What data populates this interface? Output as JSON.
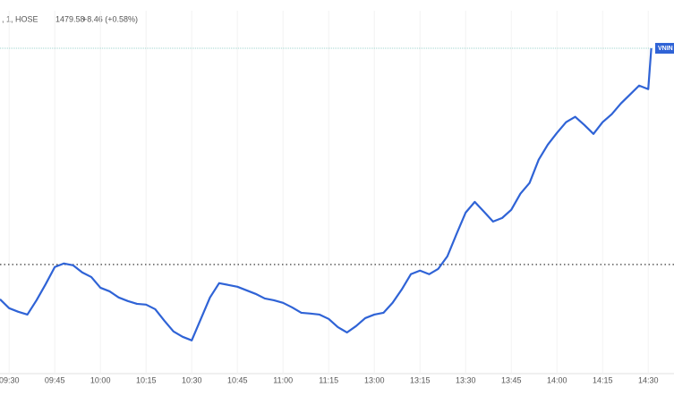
{
  "chart_data": {
    "type": "line",
    "header": {
      "symbol": ", 1, HOSE",
      "last": 1479.58,
      "change": "+8.46 (+0.58%)"
    },
    "last_tag": "VNIN",
    "prev_close": 1471.12,
    "grid": true,
    "xlim": [
      12,
      226.7
    ],
    "ylim": [
      1466.85,
      1481.05
    ],
    "xticks": [
      {
        "value": 15,
        "label": "09:30"
      },
      {
        "value": 30,
        "label": "09:45"
      },
      {
        "value": 45,
        "label": "10:00"
      },
      {
        "value": 60,
        "label": "10:15"
      },
      {
        "value": 75,
        "label": "10:30"
      },
      {
        "value": 90,
        "label": "10:45"
      },
      {
        "value": 105,
        "label": "11:00"
      },
      {
        "value": 120,
        "label": "11:15"
      },
      {
        "value": 135,
        "label": "13:00"
      },
      {
        "value": 150,
        "label": "13:15"
      },
      {
        "value": 165,
        "label": "13:30"
      },
      {
        "value": 180,
        "label": "13:45"
      },
      {
        "value": 195,
        "label": "14:00"
      },
      {
        "value": 210,
        "label": "14:15"
      },
      {
        "value": 225,
        "label": "14:30"
      }
    ],
    "x": [
      12,
      15,
      18,
      21,
      24,
      27,
      30,
      33,
      36,
      39,
      42,
      45,
      48,
      51,
      54,
      57,
      60,
      63,
      66,
      69,
      72,
      75,
      78,
      81,
      84,
      87,
      90,
      93,
      96,
      99,
      102,
      105,
      108,
      111,
      114,
      117,
      120,
      123,
      126,
      129,
      132,
      135,
      138,
      141,
      144,
      147,
      150,
      153,
      156,
      159,
      162,
      165,
      168,
      171,
      174,
      177,
      180,
      183,
      186,
      189,
      192,
      195,
      198,
      201,
      204,
      207,
      210,
      213,
      216,
      219,
      222,
      225,
      226
    ],
    "series": [
      {
        "color": "#2f63d6",
        "values": [
          1469.76,
          1469.41,
          1469.27,
          1469.16,
          1469.72,
          1470.35,
          1471.02,
          1471.16,
          1471.09,
          1470.81,
          1470.63,
          1470.21,
          1470.07,
          1469.83,
          1469.69,
          1469.58,
          1469.55,
          1469.37,
          1468.92,
          1468.5,
          1468.29,
          1468.15,
          1468.99,
          1469.83,
          1470.39,
          1470.32,
          1470.25,
          1470.11,
          1469.97,
          1469.79,
          1469.72,
          1469.62,
          1469.44,
          1469.23,
          1469.2,
          1469.16,
          1468.99,
          1468.67,
          1468.46,
          1468.71,
          1469.02,
          1469.16,
          1469.23,
          1469.62,
          1470.14,
          1470.74,
          1470.88,
          1470.74,
          1470.95,
          1471.44,
          1472.31,
          1473.15,
          1473.57,
          1473.19,
          1472.8,
          1472.94,
          1473.26,
          1473.89,
          1474.31,
          1475.22,
          1475.81,
          1476.27,
          1476.69,
          1476.9,
          1476.58,
          1476.23,
          1476.69,
          1477.0,
          1477.42,
          1477.77,
          1478.12,
          1477.98,
          1479.58
        ]
      }
    ]
  }
}
